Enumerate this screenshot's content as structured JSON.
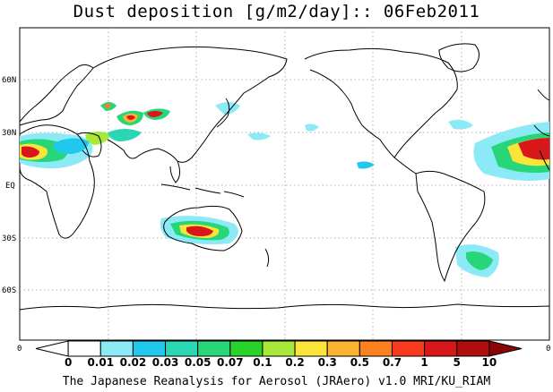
{
  "title": "Dust deposition [g/m2/day]:: 06Feb2011",
  "lat_labels": [
    "60N",
    "30N",
    "EQ",
    "30S",
    "60S"
  ],
  "lon_edge_labels": [
    "0",
    "0"
  ],
  "colorbar": {
    "labels": [
      "0",
      "0.01",
      "0.02",
      "0.03",
      "0.05",
      "0.07",
      "0.1",
      "0.2",
      "0.3",
      "0.5",
      "0.7",
      "1",
      "5",
      "10"
    ],
    "colors": [
      "#ffffff",
      "#ffffff",
      "#8ceaf7",
      "#20c8ee",
      "#2ad6b4",
      "#28d67a",
      "#28d228",
      "#a8e83a",
      "#fae43a",
      "#fab432",
      "#fa8020",
      "#f83a1e",
      "#d81818",
      "#b00e0e",
      "#8a0606"
    ]
  },
  "caption": "The Japanese Reanalysis for Aerosol (JRAero) v1.0 MRI/KU_RIAM"
}
